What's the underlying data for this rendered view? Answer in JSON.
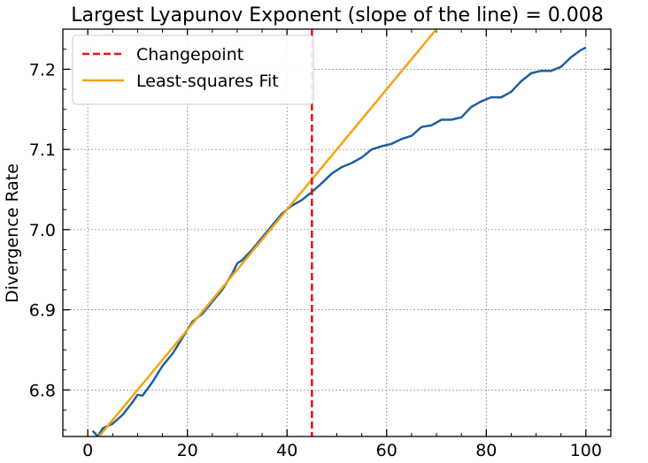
{
  "chart_data": {
    "type": "line",
    "title": "Largest Lyapunov Exponent (slope of the line) = 0.008",
    "xlabel": "",
    "ylabel": "Divergence Rate",
    "xlim": [
      -5,
      105
    ],
    "ylim": [
      6.742,
      7.25
    ],
    "xticks": [
      0,
      20,
      40,
      60,
      80,
      100
    ],
    "xtick_labels": [
      "0",
      "20",
      "40",
      "60",
      "80",
      "100"
    ],
    "yticks": [
      6.8,
      6.9,
      7.0,
      7.1,
      7.2
    ],
    "ytick_labels": [
      "6.8",
      "6.9",
      "7.0",
      "7.1",
      "7.2"
    ],
    "grid": true,
    "legend_position": "top-left",
    "series": [
      {
        "name": "",
        "kind": "line",
        "color": "#1f5fa0",
        "x": [
          1,
          2,
          3,
          5,
          7,
          9,
          10,
          11,
          13,
          15,
          17,
          19,
          21,
          23,
          25,
          27,
          29,
          30,
          31,
          33,
          35,
          37,
          39,
          41,
          43,
          45,
          47,
          49,
          51,
          53,
          55,
          57,
          59,
          61,
          63,
          65,
          67,
          69,
          71,
          73,
          75,
          77,
          79,
          81,
          83,
          85,
          87,
          89,
          91,
          93,
          95,
          97,
          99,
          100
        ],
        "y": [
          6.749,
          6.742,
          6.752,
          6.758,
          6.769,
          6.785,
          6.794,
          6.793,
          6.81,
          6.83,
          6.845,
          6.865,
          6.885,
          6.895,
          6.91,
          6.925,
          6.945,
          6.958,
          6.962,
          6.975,
          6.99,
          7.005,
          7.02,
          7.03,
          7.037,
          7.047,
          7.058,
          7.07,
          7.078,
          7.083,
          7.09,
          7.1,
          7.104,
          7.107,
          7.113,
          7.117,
          7.128,
          7.13,
          7.137,
          7.137,
          7.14,
          7.153,
          7.16,
          7.165,
          7.165,
          7.172,
          7.185,
          7.195,
          7.198,
          7.198,
          7.203,
          7.215,
          7.224,
          7.227
        ]
      },
      {
        "name": "Least-squares Fit",
        "kind": "line",
        "color": "#f5a30f",
        "x": [
          2,
          70
        ],
        "y": [
          6.74,
          7.25
        ]
      },
      {
        "name": "Changepoint",
        "kind": "vline",
        "color": "#e8141a",
        "x": [
          45
        ]
      }
    ]
  }
}
